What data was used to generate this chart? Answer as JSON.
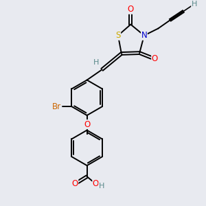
{
  "bg_color": "#e8eaf0",
  "atom_colors": {
    "S": "#ccaa00",
    "N": "#0000cc",
    "O": "#ff0000",
    "Br": "#cc6600",
    "C": "#000000",
    "H": "#5a8a8a"
  },
  "bond_color": "#000000",
  "font_size": 8.5,
  "figsize": [
    3.0,
    3.0
  ],
  "dpi": 100
}
